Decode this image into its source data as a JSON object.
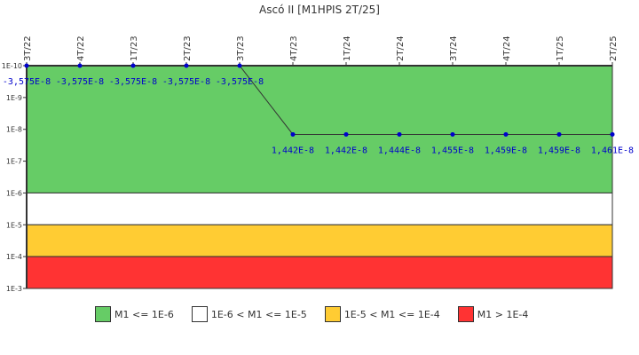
{
  "chart_data": {
    "type": "line",
    "title": "Ascó II [M1HPIS 2T/25]",
    "xlabel": "",
    "ylabel": "",
    "y_scale": "log (inverted)",
    "y_ticks": [
      "1E-10",
      "1E-9",
      "1E-8",
      "1E-7",
      "1E-6",
      "1E-5",
      "1E-4",
      "1E-3"
    ],
    "categories": [
      "3T/22",
      "4T/22",
      "1T/23",
      "2T/23",
      "3T/23",
      "4T/23",
      "1T/24",
      "2T/24",
      "3T/24",
      "4T/24",
      "1T/25",
      "2T/25"
    ],
    "series": [
      {
        "name": "M1",
        "plotted_exponent": [
          -10,
          -10,
          -10,
          -10,
          -10,
          -7.84,
          -7.84,
          -7.84,
          -7.84,
          -7.84,
          -7.84,
          -7.84
        ],
        "labels": [
          "-3,575E-8",
          "-3,575E-8",
          "-3,575E-8",
          "-3,575E-8",
          "-3,575E-8",
          "1,442E-8",
          "1,442E-8",
          "1,444E-8",
          "1,455E-8",
          "1,459E-8",
          "1,459E-8",
          "1,461E-8"
        ],
        "values": [
          -3.575e-08,
          -3.575e-08,
          -3.575e-08,
          -3.575e-08,
          -3.575e-08,
          1.442e-08,
          1.442e-08,
          1.444e-08,
          1.455e-08,
          1.459e-08,
          1.459e-08,
          1.461e-08
        ]
      }
    ],
    "bands": [
      {
        "label": "M1 <= 1E-6",
        "from": "1E-10",
        "to": "1E-6",
        "color": "#66cc66"
      },
      {
        "label": "1E-6 < M1 <= 1E-5",
        "from": "1E-6",
        "to": "1E-5",
        "color": "#ffffff"
      },
      {
        "label": "1E-5 < M1 <= 1E-4",
        "from": "1E-5",
        "to": "1E-4",
        "color": "#ffcc33"
      },
      {
        "label": "M1 > 1E-4",
        "from": "1E-4",
        "to": "1E-3",
        "color": "#ff3333"
      }
    ],
    "legend_position": "bottom",
    "grid": false
  },
  "colors": {
    "line": "#333333",
    "marker": "#0000cc",
    "label": "#0000cc",
    "axis": "#333333"
  }
}
